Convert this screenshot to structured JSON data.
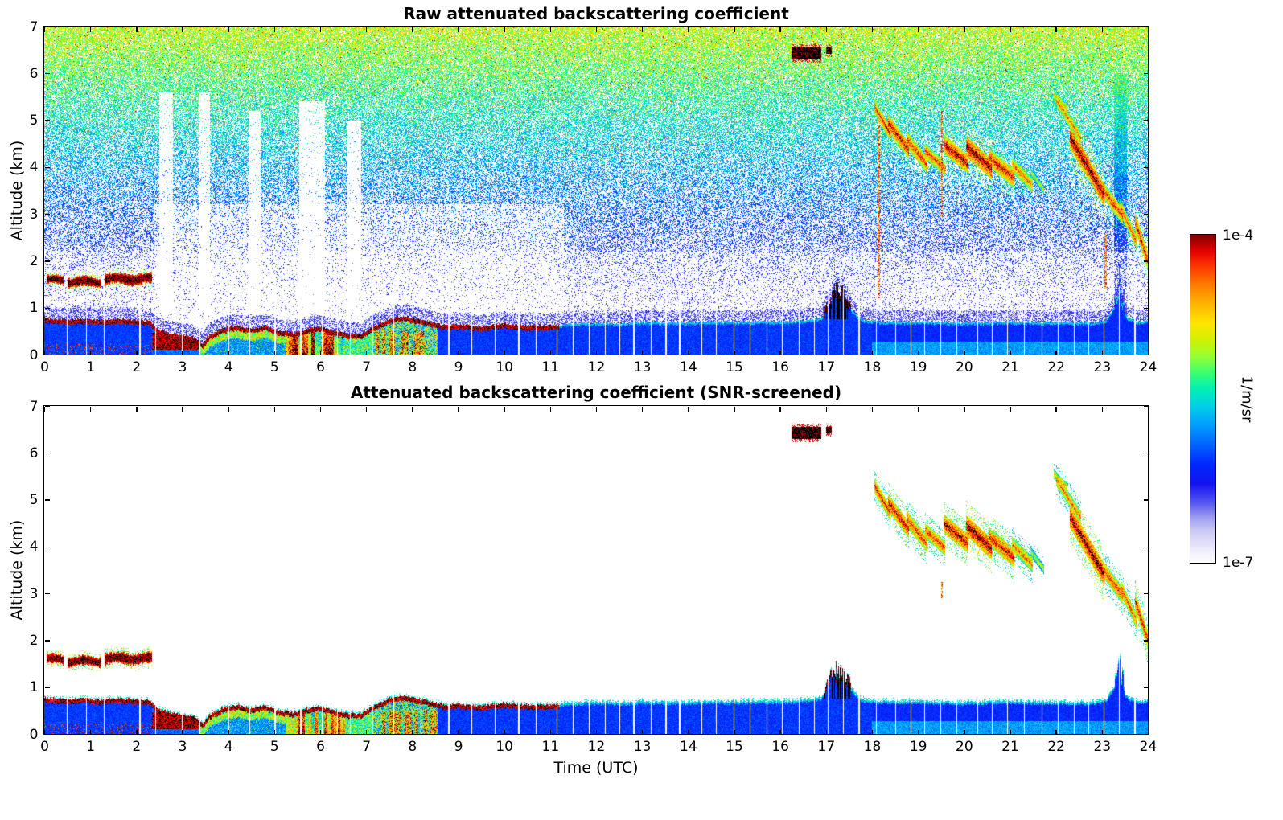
{
  "chart_data": {
    "type": "heatmap",
    "panels": [
      {
        "key": "raw",
        "title": "Raw attenuated backscattering coefficient",
        "noise_shown": true
      },
      {
        "key": "screened",
        "title": "Attenuated backscattering coefficient (SNR-screened)",
        "noise_shown": false
      }
    ],
    "x": {
      "label": "Time (UTC)",
      "min": 0,
      "max": 24,
      "ticks": [
        0,
        1,
        2,
        3,
        4,
        5,
        6,
        7,
        8,
        9,
        10,
        11,
        12,
        13,
        14,
        15,
        16,
        17,
        18,
        19,
        20,
        21,
        22,
        23,
        24
      ]
    },
    "y": {
      "label": "Altitude (km)",
      "min": 0,
      "max": 7,
      "ticks": [
        0,
        1,
        2,
        3,
        4,
        5,
        6,
        7
      ]
    },
    "colorbar": {
      "label": "1/m/sr",
      "max_label": "1e-4",
      "min_label": "1e-7",
      "scale": "log"
    },
    "colormap": [
      [
        0.0,
        "#ffffff"
      ],
      [
        0.03,
        "#f2f0fb"
      ],
      [
        0.06,
        "#e2e0f8"
      ],
      [
        0.1,
        "#c8c8f4"
      ],
      [
        0.14,
        "#9a9af0"
      ],
      [
        0.18,
        "#5a5af0"
      ],
      [
        0.24,
        "#1414f0"
      ],
      [
        0.3,
        "#0028ff"
      ],
      [
        0.36,
        "#0064ff"
      ],
      [
        0.42,
        "#00a0ff"
      ],
      [
        0.48,
        "#00d2e6"
      ],
      [
        0.53,
        "#00f0b4"
      ],
      [
        0.58,
        "#3cff6e"
      ],
      [
        0.63,
        "#96ff32"
      ],
      [
        0.68,
        "#d2f000"
      ],
      [
        0.73,
        "#ffe600"
      ],
      [
        0.79,
        "#ffb400"
      ],
      [
        0.85,
        "#ff7800"
      ],
      [
        0.9,
        "#ff3c00"
      ],
      [
        0.95,
        "#e60000"
      ],
      [
        1.0,
        "#7f0000"
      ]
    ],
    "saturated_color": "#000000",
    "features": {
      "boundary_layer": {
        "top_km": [
          [
            0,
            0.78
          ],
          [
            0.4,
            0.74
          ],
          [
            0.8,
            0.76
          ],
          [
            1.2,
            0.73
          ],
          [
            1.6,
            0.76
          ],
          [
            2.0,
            0.74
          ],
          [
            2.3,
            0.72
          ],
          [
            2.45,
            0.55
          ],
          [
            2.7,
            0.46
          ],
          [
            3.0,
            0.42
          ],
          [
            3.3,
            0.36
          ],
          [
            3.45,
            0.22
          ],
          [
            3.6,
            0.42
          ],
          [
            3.9,
            0.56
          ],
          [
            4.2,
            0.62
          ],
          [
            4.5,
            0.55
          ],
          [
            4.8,
            0.62
          ],
          [
            5.1,
            0.5
          ],
          [
            5.4,
            0.46
          ],
          [
            5.7,
            0.54
          ],
          [
            6.0,
            0.6
          ],
          [
            6.3,
            0.5
          ],
          [
            6.6,
            0.44
          ],
          [
            6.9,
            0.44
          ],
          [
            7.2,
            0.62
          ],
          [
            7.5,
            0.76
          ],
          [
            7.8,
            0.82
          ],
          [
            8.1,
            0.76
          ],
          [
            8.4,
            0.7
          ],
          [
            8.7,
            0.62
          ],
          [
            9.0,
            0.64
          ],
          [
            9.5,
            0.6
          ],
          [
            10.0,
            0.66
          ],
          [
            10.5,
            0.62
          ],
          [
            11.0,
            0.62
          ],
          [
            11.5,
            0.66
          ],
          [
            12.0,
            0.68
          ],
          [
            12.5,
            0.66
          ],
          [
            13.0,
            0.7
          ],
          [
            13.5,
            0.68
          ],
          [
            14.0,
            0.68
          ],
          [
            14.5,
            0.7
          ],
          [
            15.0,
            0.69
          ],
          [
            15.5,
            0.7
          ],
          [
            16.0,
            0.7
          ],
          [
            16.5,
            0.72
          ],
          [
            16.9,
            0.78
          ],
          [
            17.1,
            1.05
          ],
          [
            17.3,
            1.2
          ],
          [
            17.5,
            1.05
          ],
          [
            17.65,
            0.85
          ],
          [
            17.8,
            0.74
          ],
          [
            18.2,
            0.7
          ],
          [
            19,
            0.7
          ],
          [
            20,
            0.68
          ],
          [
            21,
            0.7
          ],
          [
            22,
            0.68
          ],
          [
            22.8,
            0.68
          ],
          [
            23.1,
            0.74
          ],
          [
            23.35,
            1.15
          ],
          [
            23.55,
            0.8
          ],
          [
            23.75,
            0.7
          ],
          [
            24,
            0.72
          ]
        ],
        "edge_strong_until_utc": 11.2,
        "spike_events": [
          {
            "t0": 16.95,
            "t1": 17.55,
            "amp": 0.42,
            "black": true
          },
          {
            "t0": 23.28,
            "t1": 23.5,
            "amp": 0.6,
            "black": false
          }
        ]
      },
      "surface_regimes": [
        {
          "t0": 0,
          "t1": 2.35,
          "kind": "specks"
        },
        {
          "t0": 2.35,
          "t1": 3.35,
          "kind": "dark_patch"
        },
        {
          "t0": 3.35,
          "t1": 5.25,
          "kind": "green_top"
        },
        {
          "t0": 5.25,
          "t1": 6.55,
          "kind": "strong"
        },
        {
          "t0": 6.55,
          "t1": 7.15,
          "kind": "moderate"
        },
        {
          "t0": 7.15,
          "t1": 8.55,
          "kind": "mixed"
        },
        {
          "t0": 8.55,
          "t1": 18.0,
          "kind": "blue"
        },
        {
          "t0": 18.0,
          "t1": 24.0,
          "kind": "blue_cyan"
        }
      ],
      "elevated_layers": [
        {
          "t0": 0.05,
          "t1": 0.42,
          "a0": 1.5,
          "a1": 1.68
        },
        {
          "t0": 0.5,
          "t1": 1.25,
          "a0": 1.45,
          "a1": 1.65
        },
        {
          "t0": 1.32,
          "t1": 2.35,
          "a0": 1.5,
          "a1": 1.72
        }
      ],
      "clouds": [
        {
          "t0": 16.25,
          "t1": 16.9,
          "a0": 6.3,
          "a1": 6.55
        },
        {
          "t0": 17.0,
          "t1": 17.12,
          "a0": 6.42,
          "a1": 6.55
        }
      ],
      "precip_streaks": [
        {
          "t0": 18.05,
          "t1": 18.4,
          "a0": 5.3,
          "a1": 4.7,
          "w": 0.15,
          "v": 0.92
        },
        {
          "t0": 18.35,
          "t1": 18.8,
          "a0": 4.95,
          "a1": 4.35,
          "w": 0.18,
          "v": 0.95
        },
        {
          "t0": 18.75,
          "t1": 19.2,
          "a0": 4.6,
          "a1": 4.05,
          "w": 0.18,
          "v": 0.9
        },
        {
          "t0": 19.15,
          "t1": 19.6,
          "a0": 4.35,
          "a1": 3.95,
          "w": 0.16,
          "v": 0.9
        },
        {
          "t0": 19.55,
          "t1": 20.1,
          "a0": 4.5,
          "a1": 4.05,
          "w": 0.2,
          "v": 0.97
        },
        {
          "t0": 20.05,
          "t1": 20.6,
          "a0": 4.45,
          "a1": 3.95,
          "w": 0.22,
          "v": 1.0
        },
        {
          "t0": 20.55,
          "t1": 21.1,
          "a0": 4.2,
          "a1": 3.75,
          "w": 0.2,
          "v": 0.93
        },
        {
          "t0": 21.05,
          "t1": 21.5,
          "a0": 4.05,
          "a1": 3.6,
          "w": 0.16,
          "v": 0.85
        },
        {
          "t0": 21.45,
          "t1": 21.75,
          "a0": 3.9,
          "a1": 3.5,
          "w": 0.1,
          "v": 0.7
        },
        {
          "t0": 21.95,
          "t1": 22.25,
          "a0": 5.55,
          "a1": 5.25,
          "w": 0.1,
          "v": 0.78
        },
        {
          "t0": 22.0,
          "t1": 22.55,
          "a0": 5.45,
          "a1": 4.6,
          "w": 0.15,
          "v": 0.85
        },
        {
          "t0": 22.3,
          "t1": 23.05,
          "a0": 4.65,
          "a1": 3.4,
          "w": 0.24,
          "v": 1.0
        },
        {
          "t0": 23.0,
          "t1": 23.45,
          "a0": 3.55,
          "a1": 2.95,
          "w": 0.18,
          "v": 0.9
        },
        {
          "t0": 23.4,
          "t1": 23.78,
          "a0": 3.15,
          "a1": 2.35,
          "w": 0.16,
          "v": 0.88
        },
        {
          "t0": 23.72,
          "t1": 24.0,
          "a0": 2.85,
          "a1": 2.0,
          "w": 0.2,
          "v": 0.93
        }
      ],
      "thin_streaks": [
        {
          "t": 18.15,
          "a0": 1.2,
          "a1": 5.0,
          "raw_only": true
        },
        {
          "t": 19.52,
          "a0": 2.9,
          "a1": 3.25,
          "raw_only": false
        },
        {
          "t": 19.52,
          "a0": 3.25,
          "a1": 5.2,
          "raw_only": true
        },
        {
          "t": 23.08,
          "a0": 1.4,
          "a1": 2.6,
          "raw_only": true
        }
      ],
      "data_gap_lines_utc": [
        0.5,
        0.92,
        1.3,
        2.08,
        2.42,
        3.0,
        3.38,
        4.02,
        4.47,
        5.02,
        5.58,
        6.05,
        6.38,
        6.65,
        7.15,
        7.6,
        8.2,
        8.8,
        9.3,
        9.8,
        10.32,
        10.7,
        11.15,
        11.5,
        11.85,
        12.2,
        12.52,
        12.82,
        13.2,
        13.52,
        13.82,
        14.3,
        14.62,
        15.0,
        15.35,
        15.72,
        16.05,
        16.42,
        16.75,
        17.05,
        17.38,
        17.72,
        18.1,
        18.52,
        18.85,
        19.15,
        19.5,
        19.85,
        20.3,
        20.62,
        20.95,
        21.32,
        21.7,
        22.05,
        22.4,
        22.72,
        23.05,
        23.38,
        23.72
      ],
      "noise_gap_bands": [
        {
          "t0": 2.5,
          "t1": 2.8,
          "top": 5.6
        },
        {
          "t0": 3.35,
          "t1": 3.6,
          "top": 5.6
        },
        {
          "t0": 4.45,
          "t1": 4.7,
          "top": 5.2
        },
        {
          "t0": 5.55,
          "t1": 6.1,
          "top": 5.4
        },
        {
          "t0": 6.6,
          "t1": 6.9,
          "top": 5.0
        }
      ]
    }
  }
}
